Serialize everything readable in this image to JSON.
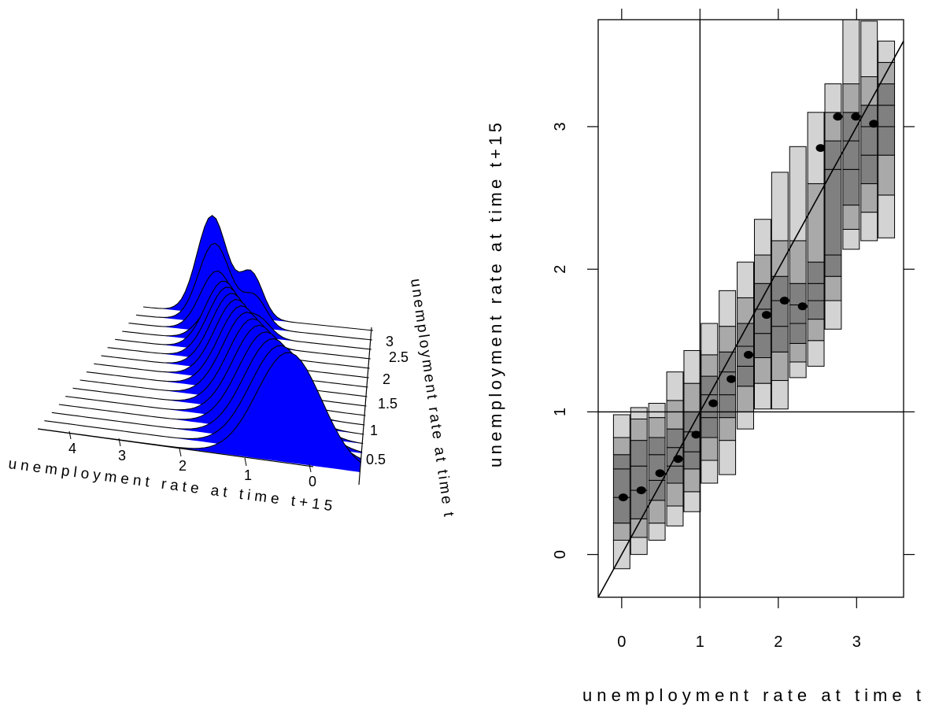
{
  "chart_data": [
    {
      "type": "ridgeline-3d",
      "xlabel": "unemployment rate at time t+15",
      "ylabel": "unemployment rate at time t",
      "x_ticks": [
        "4",
        "3",
        "2",
        "1",
        "0"
      ],
      "y_ticks": [
        "0.5",
        "1",
        "1.5",
        "2",
        "2.5",
        "3"
      ],
      "slice_count": 16,
      "fill_color": "#0000ff"
    },
    {
      "type": "heatmap",
      "xlabel": "unemployment rate at time t",
      "ylabel": "unemployment rate at time t+15",
      "xlim": [
        -0.3,
        3.6
      ],
      "ylim": [
        -0.3,
        3.75
      ],
      "x_ticks": [
        0,
        1,
        2,
        3
      ],
      "y_ticks": [
        0,
        1,
        2,
        3
      ],
      "x_tick_labels": [
        "0",
        "1",
        "2",
        "3"
      ],
      "y_tick_labels": [
        "0",
        "1",
        "2",
        "3"
      ],
      "reference_lines": {
        "vertical": 1,
        "horizontal": 1,
        "diagonal_slope": 1
      },
      "shade_colors": [
        "#d3d3d3",
        "#a9a9a9",
        "#808080"
      ],
      "columns": [
        {
          "x": 0.0,
          "bands": [
            -0.1,
            0.1,
            0.22,
            0.4,
            0.6,
            0.7,
            0.82,
            0.98
          ]
        },
        {
          "x": 0.22,
          "bands": [
            0.0,
            0.12,
            0.25,
            0.45,
            0.62,
            0.8,
            0.95,
            1.03
          ]
        },
        {
          "x": 0.45,
          "bands": [
            0.1,
            0.22,
            0.38,
            0.52,
            0.7,
            0.82,
            0.96,
            1.06
          ]
        },
        {
          "x": 0.68,
          "bands": [
            0.2,
            0.34,
            0.5,
            0.62,
            0.75,
            0.88,
            1.08,
            1.28
          ]
        },
        {
          "x": 0.9,
          "bands": [
            0.3,
            0.44,
            0.6,
            0.72,
            0.86,
            1.0,
            1.2,
            1.43
          ]
        },
        {
          "x": 1.12,
          "bands": [
            0.5,
            0.66,
            0.82,
            0.96,
            1.12,
            1.25,
            1.4,
            1.62
          ]
        },
        {
          "x": 1.35,
          "bands": [
            0.56,
            0.8,
            0.96,
            1.12,
            1.28,
            1.42,
            1.6,
            1.85
          ]
        },
        {
          "x": 1.58,
          "bands": [
            0.88,
            1.0,
            1.18,
            1.32,
            1.46,
            1.62,
            1.8,
            2.05
          ]
        },
        {
          "x": 1.8,
          "bands": [
            1.02,
            1.2,
            1.38,
            1.55,
            1.72,
            1.9,
            2.1,
            2.35
          ]
        },
        {
          "x": 2.02,
          "bands": [
            1.02,
            1.22,
            1.42,
            1.6,
            1.78,
            1.95,
            2.2,
            2.68
          ]
        },
        {
          "x": 2.25,
          "bands": [
            1.24,
            1.35,
            1.48,
            1.62,
            1.75,
            1.9,
            2.2,
            2.86
          ]
        },
        {
          "x": 2.48,
          "bands": [
            1.32,
            1.5,
            1.65,
            1.78,
            1.9,
            2.05,
            2.6,
            3.1
          ]
        },
        {
          "x": 2.7,
          "bands": [
            1.58,
            1.78,
            1.95,
            2.1,
            2.7,
            2.9,
            3.1,
            3.3
          ]
        },
        {
          "x": 2.93,
          "bands": [
            2.14,
            2.28,
            2.45,
            2.7,
            2.9,
            3.1,
            3.3,
            3.75
          ]
        },
        {
          "x": 3.16,
          "bands": [
            2.2,
            2.4,
            2.6,
            2.8,
            3.0,
            3.15,
            3.35,
            3.74
          ]
        },
        {
          "x": 3.38,
          "bands": [
            2.22,
            2.52,
            2.8,
            3.0,
            3.15,
            3.3,
            3.45,
            3.6
          ]
        }
      ],
      "medians": [
        {
          "x": 0.02,
          "y": 0.4
        },
        {
          "x": 0.25,
          "y": 0.45
        },
        {
          "x": 0.49,
          "y": 0.57
        },
        {
          "x": 0.72,
          "y": 0.67
        },
        {
          "x": 0.95,
          "y": 0.84
        },
        {
          "x": 1.17,
          "y": 1.06
        },
        {
          "x": 1.4,
          "y": 1.23
        },
        {
          "x": 1.62,
          "y": 1.4
        },
        {
          "x": 1.85,
          "y": 1.68
        },
        {
          "x": 2.08,
          "y": 1.78
        },
        {
          "x": 2.31,
          "y": 1.74
        },
        {
          "x": 2.54,
          "y": 2.85
        },
        {
          "x": 2.76,
          "y": 3.07
        },
        {
          "x": 2.99,
          "y": 3.07
        },
        {
          "x": 3.22,
          "y": 3.02
        }
      ]
    }
  ]
}
